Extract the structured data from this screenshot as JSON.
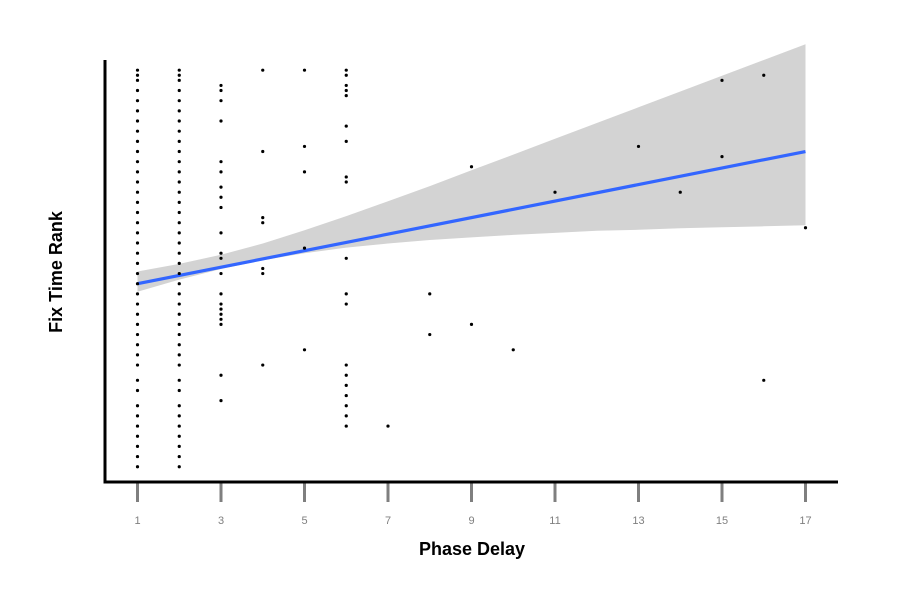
{
  "chart_data": {
    "type": "scatter",
    "xlabel": "Phase Delay",
    "ylabel": "Fix Time Rank",
    "xlim": [
      0.2,
      17.8
    ],
    "ylim": [
      -1,
      82
    ],
    "x_ticks": [
      1,
      3,
      5,
      7,
      9,
      11,
      13,
      15,
      17
    ],
    "grid": false,
    "legend": "none",
    "colors": {
      "points": "#000000",
      "fit_line": "#3366ff",
      "confidence_band": "#d3d3d3",
      "tick_marks": "#7f7f7f",
      "axes": "#000000"
    },
    "points": [
      {
        "x": 1,
        "y": [
          2,
          4,
          6,
          8,
          10,
          12,
          14,
          17,
          19,
          22,
          24,
          26,
          28,
          30,
          32,
          34,
          36,
          38,
          40,
          42,
          44,
          46,
          48,
          50,
          52,
          54,
          56,
          58,
          60,
          62,
          64,
          66,
          68,
          70,
          72,
          74,
          76,
          78,
          79,
          80
        ]
      },
      {
        "x": 2,
        "y": [
          2,
          4,
          6,
          8,
          10,
          12,
          14,
          17,
          19,
          22,
          24,
          26,
          28,
          30,
          32,
          34,
          36,
          38,
          40,
          42,
          44,
          46,
          48,
          50,
          52,
          54,
          56,
          58,
          60,
          62,
          64,
          66,
          68,
          70,
          72,
          74,
          76,
          78,
          79,
          80
        ]
      },
      {
        "x": 3,
        "y": [
          15,
          20,
          30,
          31,
          32,
          33,
          34,
          36,
          40,
          43,
          44,
          48,
          53,
          55,
          57,
          60,
          62,
          70,
          74,
          76,
          77
        ]
      },
      {
        "x": 4,
        "y": [
          22,
          40,
          41,
          50,
          51,
          64,
          80
        ]
      },
      {
        "x": 5,
        "y": [
          25,
          45,
          60,
          65,
          80
        ]
      },
      {
        "x": 6,
        "y": [
          10,
          12,
          14,
          16,
          18,
          20,
          22,
          34,
          36,
          43,
          58,
          59,
          66,
          69,
          75,
          76,
          77,
          79,
          80
        ]
      },
      {
        "x": 7,
        "y": [
          10
        ]
      },
      {
        "x": 8,
        "y": [
          28,
          36
        ]
      },
      {
        "x": 9,
        "y": [
          30,
          61
        ]
      },
      {
        "x": 10,
        "y": [
          25
        ]
      },
      {
        "x": 11,
        "y": [
          56
        ]
      },
      {
        "x": 13,
        "y": [
          65
        ]
      },
      {
        "x": 14,
        "y": [
          56
        ]
      },
      {
        "x": 15,
        "y": [
          63,
          78
        ]
      },
      {
        "x": 16,
        "y": [
          19,
          79
        ]
      },
      {
        "x": 17,
        "y": [
          49
        ]
      }
    ],
    "fit_line": {
      "x": [
        1,
        17
      ],
      "y": [
        38,
        64
      ]
    },
    "confidence_band": {
      "x": [
        1,
        2,
        3,
        4,
        5,
        6,
        7,
        8,
        9,
        10,
        11,
        12,
        13,
        14,
        15,
        16,
        17
      ],
      "lower": [
        36.4,
        38.8,
        40.9,
        42.6,
        44.0,
        45.1,
        45.9,
        46.6,
        47.1,
        47.6,
        48.0,
        48.4,
        48.6,
        48.9,
        49.1,
        49.3,
        49.5
      ],
      "upper": [
        40.4,
        41.9,
        43.7,
        45.9,
        48.5,
        51.3,
        54.2,
        57.2,
        60.3,
        63.4,
        66.5,
        69.6,
        72.7,
        75.8,
        78.9,
        82.0,
        85.1
      ]
    }
  }
}
